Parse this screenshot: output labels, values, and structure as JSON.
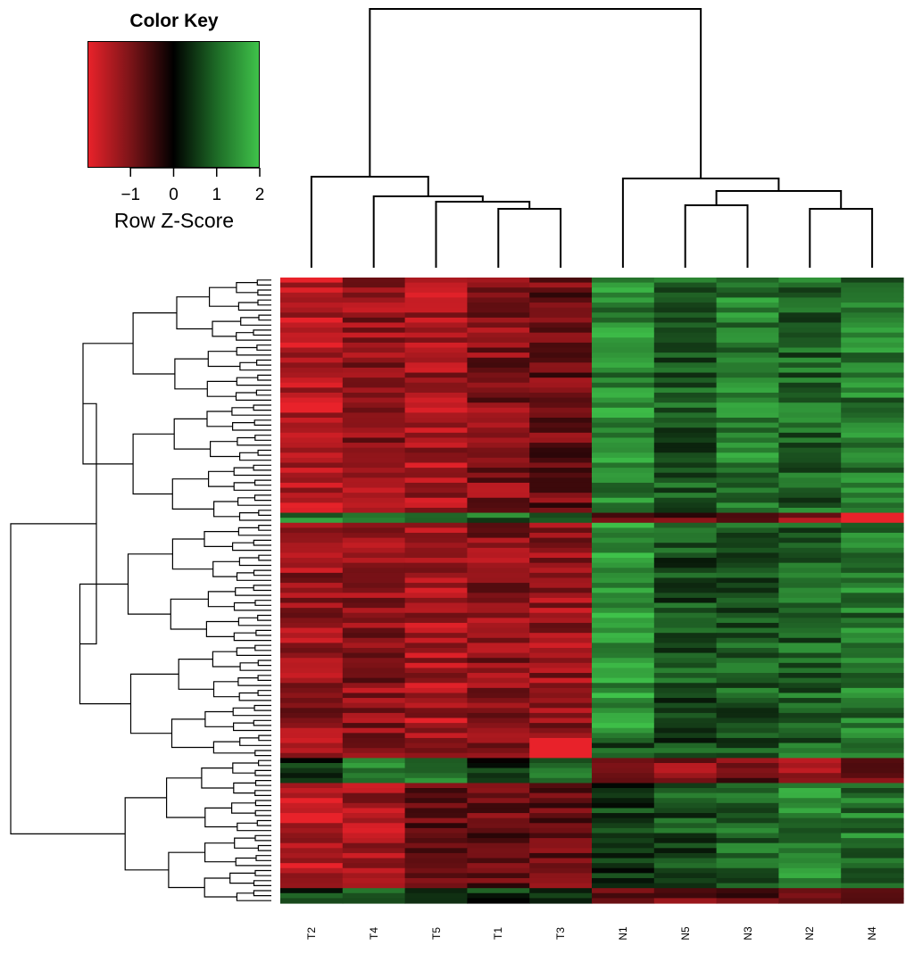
{
  "chart_data": {
    "type": "heatmap",
    "title": "",
    "color_key": {
      "title": "Color Key",
      "xlabel": "Row Z-Score",
      "ticks": [
        "−1",
        "0",
        "1",
        "2"
      ],
      "tick_values": [
        -1,
        0,
        1,
        2
      ],
      "range": [
        -2,
        2
      ],
      "colors": {
        "low": "#e8222a",
        "mid": "#000000",
        "high": "#3fc24a"
      }
    },
    "columns": [
      "T2",
      "T4",
      "T5",
      "T1",
      "T3",
      "N1",
      "N5",
      "N3",
      "N2",
      "N4"
    ],
    "column_groups": {
      "tumor": [
        "T2",
        "T4",
        "T5",
        "T1",
        "T3"
      ],
      "normal": [
        "N1",
        "N5",
        "N3",
        "N2",
        "N4"
      ]
    },
    "column_dendrogram": "((T2,(T4,(T5,(T1,T3)))),((N1),((N5,N3),(N2,N4))))",
    "row_blocks": [
      {
        "rows": 47,
        "pattern": [
          -1.6,
          -1.2,
          -1.4,
          -1.1,
          -0.9,
          1.4,
          0.9,
          1.3,
          1.0,
          1.2
        ]
      },
      {
        "rows": 2,
        "pattern": [
          1.2,
          1.0,
          1.0,
          1.0,
          1.1,
          -0.6,
          -0.8,
          -0.8,
          -1.2,
          -2.0
        ]
      },
      {
        "rows": 42,
        "pattern": [
          -1.3,
          -1.2,
          -1.5,
          -1.2,
          -1.3,
          1.6,
          0.8,
          0.9,
          1.0,
          1.2
        ]
      },
      {
        "rows": 5,
        "pattern": [
          -1.3,
          -1.2,
          -1.3,
          -1.2,
          -1.8,
          0.8,
          0.7,
          0.9,
          1.0,
          1.1
        ]
      },
      {
        "rows": 5,
        "pattern": [
          0.5,
          1.1,
          1.3,
          0.4,
          1.0,
          -1.1,
          -1.1,
          -0.9,
          -1.4,
          -1.2
        ]
      },
      {
        "rows": 21,
        "pattern": [
          -1.6,
          -1.4,
          -0.9,
          -0.8,
          -0.9,
          0.6,
          0.8,
          1.0,
          1.3,
          1.2
        ]
      },
      {
        "rows": 3,
        "pattern": [
          0.6,
          1.2,
          0.8,
          0.5,
          0.7,
          -1.0,
          -1.0,
          -0.6,
          -1.1,
          -0.9
        ]
      }
    ]
  }
}
